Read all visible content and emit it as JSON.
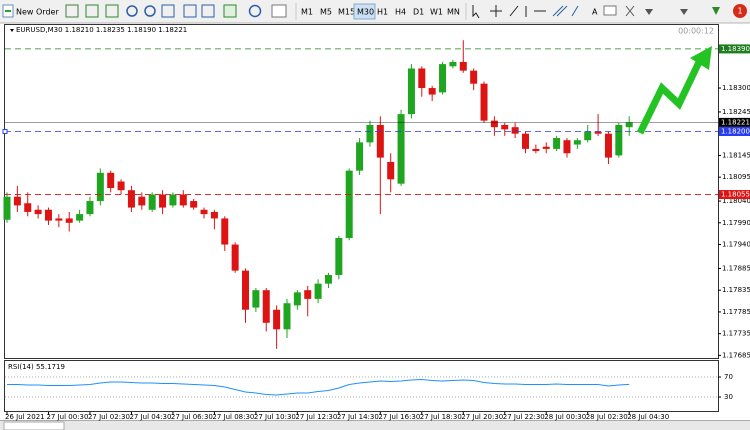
{
  "toolbar": {
    "new_order": "New Order",
    "timeframes": [
      "M1",
      "M5",
      "M15",
      "M30",
      "H1",
      "H4",
      "D1",
      "W1",
      "MN"
    ],
    "notifications": "1"
  },
  "chart_data": [
    {
      "type": "candlestick",
      "title": "EURUSD,M30  1.18210 1.18235 1.18190 1.18221",
      "timer": "00:00:12",
      "categories": [
        "26 Jul 2021",
        null,
        null,
        null,
        "27 Jul 00:30",
        null,
        null,
        null,
        "27 Jul 02:30",
        null,
        null,
        null,
        "27 Jul 04:30",
        null,
        null,
        null,
        "27 Jul 06:30",
        null,
        null,
        null,
        "27 Jul 08:30",
        null,
        null,
        null,
        "27 Jul 10:30",
        null,
        null,
        null,
        "27 Jul 12:30",
        null,
        null,
        null,
        "27 Jul 14:30",
        null,
        null,
        null,
        "27 Jul 16:30",
        null,
        null,
        null,
        "27 Jul 18:30",
        null,
        null,
        null,
        "27 Jul 20:30",
        null,
        null,
        null,
        "27 Jul 22:30",
        null,
        null,
        null,
        "28 Jul 00:30",
        null,
        null,
        null,
        "28 Jul 02:30",
        null,
        null,
        null,
        "28 Jul 04:30"
      ],
      "open": [
        1.17997,
        1.1805,
        1.18035,
        1.1802,
        1.1802,
        1.18,
        1.18,
        1.17995,
        1.1801,
        1.1804,
        1.18105,
        1.18085,
        1.18065,
        1.1805,
        1.1802,
        1.18055,
        1.1803,
        1.18055,
        1.1804,
        1.1802,
        1.18015,
        1.18,
        1.1794,
        1.1788,
        1.17795,
        1.17835,
        1.1779,
        1.17745,
        1.178,
        1.17835,
        1.17815,
        1.1785,
        1.1787,
        1.17955,
        1.1811,
        1.18175,
        1.18215,
        1.1813,
        1.1808,
        1.1824,
        1.18345,
        1.183,
        1.1829,
        1.1835,
        1.1836,
        1.1834,
        1.1831,
        1.18225,
        1.18215,
        1.1821,
        1.18195,
        1.1816,
        1.18165,
        1.1816,
        1.1818,
        1.1817,
        1.1818,
        1.182,
        1.18195,
        1.18145,
        1.1821
      ],
      "high": [
        1.1806,
        1.18075,
        1.1806,
        1.1803,
        1.18025,
        1.1801,
        1.18015,
        1.1802,
        1.1805,
        1.18115,
        1.1811,
        1.1809,
        1.18075,
        1.1806,
        1.1806,
        1.18065,
        1.1806,
        1.18065,
        1.18045,
        1.18025,
        1.1802,
        1.18005,
        1.17945,
        1.17885,
        1.1784,
        1.1784,
        1.178,
        1.17815,
        1.17835,
        1.17845,
        1.1786,
        1.17875,
        1.1796,
        1.18115,
        1.18185,
        1.18225,
        1.18235,
        1.1815,
        1.1825,
        1.18355,
        1.1835,
        1.18305,
        1.1836,
        1.18365,
        1.1841,
        1.18345,
        1.18315,
        1.18235,
        1.1822,
        1.1822,
        1.182,
        1.1817,
        1.18175,
        1.1819,
        1.18185,
        1.18185,
        1.18215,
        1.1824,
        1.182,
        1.1822,
        1.18235
      ],
      "low": [
        1.1799,
        1.18015,
        1.18005,
        1.18,
        1.17985,
        1.1798,
        1.1797,
        1.1799,
        1.18005,
        1.1803,
        1.1806,
        1.18055,
        1.18015,
        1.1802,
        1.18015,
        1.1801,
        1.18025,
        1.18025,
        1.1802,
        1.18,
        1.17975,
        1.17925,
        1.17875,
        1.1776,
        1.17785,
        1.1774,
        1.177,
        1.17725,
        1.1779,
        1.17775,
        1.17805,
        1.1784,
        1.1786,
        1.1795,
        1.181,
        1.18165,
        1.1801,
        1.1806,
        1.18075,
        1.1823,
        1.1828,
        1.1827,
        1.18285,
        1.18345,
        1.18335,
        1.18295,
        1.1822,
        1.1819,
        1.1819,
        1.18185,
        1.1815,
        1.1815,
        1.1815,
        1.18155,
        1.1814,
        1.1816,
        1.18175,
        1.1819,
        1.18125,
        1.1814,
        1.1819
      ],
      "close": [
        1.1805,
        1.1803,
        1.18015,
        1.1801,
        1.17995,
        1.17995,
        1.1799,
        1.1801,
        1.1804,
        1.18105,
        1.1807,
        1.18065,
        1.18025,
        1.1803,
        1.18055,
        1.18025,
        1.18055,
        1.1803,
        1.18025,
        1.1801,
        1.18,
        1.1794,
        1.1788,
        1.1779,
        1.17835,
        1.1776,
        1.17745,
        1.17805,
        1.1783,
        1.17815,
        1.1785,
        1.1787,
        1.17955,
        1.1811,
        1.18175,
        1.18215,
        1.1814,
        1.1809,
        1.1824,
        1.18345,
        1.183,
        1.18285,
        1.18355,
        1.1836,
        1.1834,
        1.1831,
        1.18225,
        1.1821,
        1.18205,
        1.18195,
        1.1816,
        1.18155,
        1.1816,
        1.18185,
        1.1815,
        1.1818,
        1.182,
        1.18195,
        1.1814,
        1.18215,
        1.18221
      ],
      "up_color": "#1fa51f",
      "down_color": "#dc1414",
      "ylim": [
        1.17679,
        1.18445
      ],
      "yticks": [
        {
          "value": 1.183,
          "label": "1.18300"
        },
        {
          "value": 1.18245,
          "label": "1.18245"
        },
        {
          "value": 1.18145,
          "label": "1.18145"
        },
        {
          "value": 1.18095,
          "label": "1.18095"
        },
        {
          "value": 1.1804,
          "label": "1.18040"
        },
        {
          "value": 1.1799,
          "label": "1.17990"
        },
        {
          "value": 1.1794,
          "label": "1.17940"
        },
        {
          "value": 1.17885,
          "label": "1.17885"
        },
        {
          "value": 1.17835,
          "label": "1.17835"
        },
        {
          "value": 1.17785,
          "label": "1.17785"
        },
        {
          "value": 1.17735,
          "label": "1.17735"
        },
        {
          "value": 1.17685,
          "label": "1.17685"
        }
      ],
      "levels": [
        {
          "value": 1.1839,
          "label": "1.18390",
          "color": "#1e7d1e",
          "style": "dashed"
        },
        {
          "value": 1.18221,
          "label": "1.18221",
          "color": "#000000",
          "style": "solid"
        },
        {
          "value": 1.182,
          "label": "1.18200",
          "color": "#2a3cf0",
          "style": "dashed"
        },
        {
          "value": 1.18055,
          "label": "1.18055",
          "color": "#dc1414",
          "style": "dashed"
        }
      ]
    },
    {
      "type": "line",
      "title": "RSI(14) 55.1719",
      "color": "#1e90ff",
      "values": [
        55,
        55,
        54,
        54,
        53,
        53,
        53,
        54,
        55,
        58,
        60,
        60,
        59,
        58,
        58,
        57,
        57,
        56,
        55,
        54,
        53,
        50,
        45,
        40,
        38,
        35,
        34,
        36,
        38,
        38,
        41,
        43,
        48,
        55,
        58,
        60,
        62,
        61,
        62,
        64,
        65,
        63,
        62,
        63,
        64,
        63,
        59,
        57,
        56,
        56,
        55,
        55,
        55,
        56,
        55,
        55,
        55,
        55,
        52,
        54,
        55.1719
      ],
      "ylim": [
        0,
        100
      ],
      "yticks": [
        70,
        30
      ]
    }
  ]
}
